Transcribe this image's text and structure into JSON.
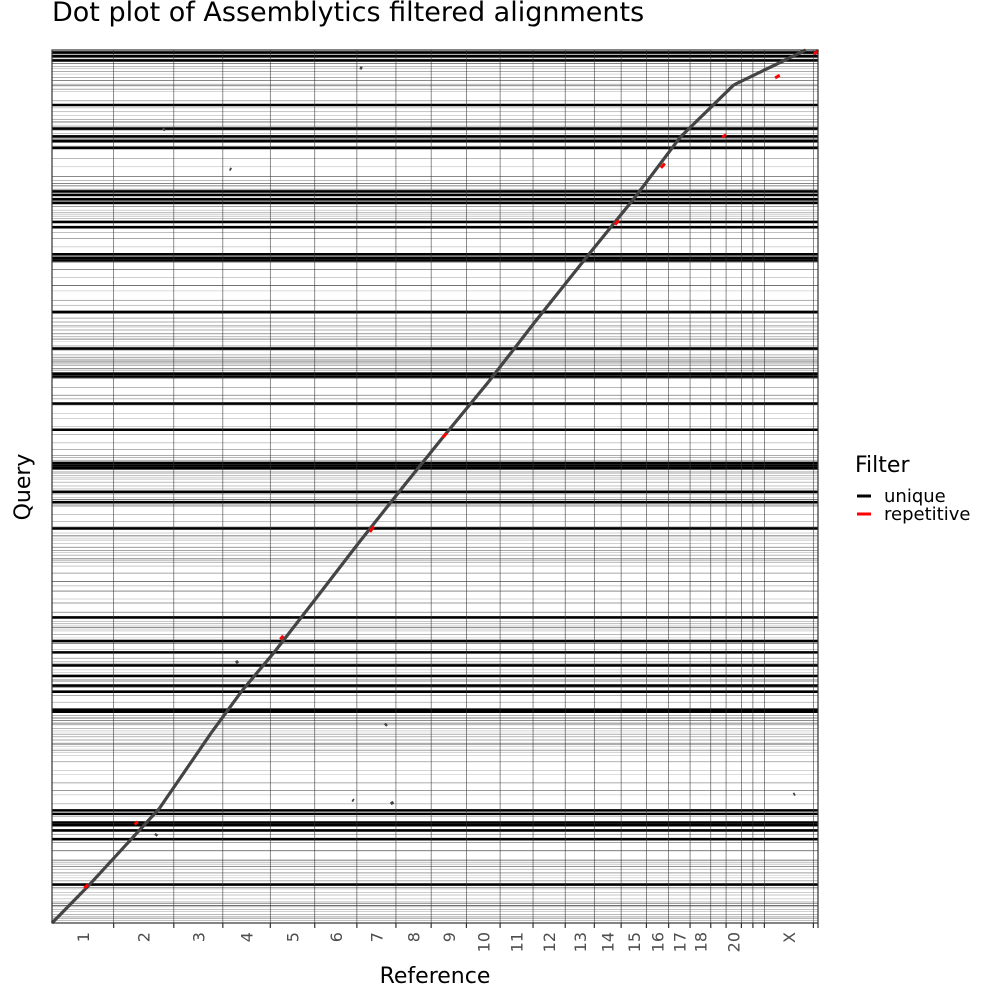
{
  "chart_data": {
    "type": "scatter",
    "title": "Dot plot of Assemblytics filtered alignments",
    "xlabel": "Reference",
    "ylabel": "Query",
    "xlim": [
      0,
      1
    ],
    "ylim": [
      0,
      1
    ],
    "grid": true,
    "legend": {
      "title": "Filter",
      "placement": "right",
      "entries": [
        {
          "label": "unique",
          "color": "#000000"
        },
        {
          "label": "repetitive",
          "color": "#ff0000"
        }
      ]
    },
    "reference_chromosomes": [
      {
        "label": "1",
        "start": 0.0,
        "end": 0.0805
      },
      {
        "label": "2",
        "start": 0.0805,
        "end": 0.159
      },
      {
        "label": "3",
        "start": 0.159,
        "end": 0.223
      },
      {
        "label": "4",
        "start": 0.223,
        "end": 0.285
      },
      {
        "label": "5",
        "start": 0.285,
        "end": 0.343
      },
      {
        "label": "6",
        "start": 0.343,
        "end": 0.398
      },
      {
        "label": "7",
        "start": 0.398,
        "end": 0.449
      },
      {
        "label": "8",
        "start": 0.449,
        "end": 0.495
      },
      {
        "label": "9",
        "start": 0.495,
        "end": 0.541
      },
      {
        "label": "10",
        "start": 0.541,
        "end": 0.585
      },
      {
        "label": "11",
        "start": 0.585,
        "end": 0.628
      },
      {
        "label": "12",
        "start": 0.628,
        "end": 0.67
      },
      {
        "label": "13",
        "start": 0.67,
        "end": 0.708
      },
      {
        "label": "14",
        "start": 0.708,
        "end": 0.743
      },
      {
        "label": "15",
        "start": 0.743,
        "end": 0.776
      },
      {
        "label": "16",
        "start": 0.776,
        "end": 0.805
      },
      {
        "label": "17",
        "start": 0.805,
        "end": 0.833
      },
      {
        "label": "18",
        "start": 0.833,
        "end": 0.86
      },
      {
        "label": "",
        "start": 0.86,
        "end": 0.88
      },
      {
        "label": "20",
        "start": 0.88,
        "end": 0.9
      },
      {
        "label": "",
        "start": 0.9,
        "end": 0.915
      },
      {
        "label": "",
        "start": 0.915,
        "end": 0.93
      },
      {
        "label": "X",
        "start": 0.93,
        "end": 0.994
      },
      {
        "label": "",
        "start": 0.994,
        "end": 1.0
      }
    ],
    "query_thick_boundaries": [
      0.044,
      0.096,
      0.106,
      0.112,
      0.115,
      0.125,
      0.129,
      0.242,
      0.244,
      0.265,
      0.272,
      0.283,
      0.295,
      0.31,
      0.323,
      0.35,
      0.452,
      0.482,
      0.494,
      0.521,
      0.524,
      0.527,
      0.565,
      0.595,
      0.626,
      0.629,
      0.658,
      0.7,
      0.759,
      0.762,
      0.766,
      0.797,
      0.803,
      0.825,
      0.829,
      0.834,
      0.838,
      0.888,
      0.896,
      0.901,
      0.91,
      0.937,
      0.988,
      0.993,
      0.997
    ],
    "query_dense_bands": [
      [
        0.0,
        0.07
      ],
      [
        0.185,
        0.245
      ],
      [
        0.274,
        0.3
      ],
      [
        0.32,
        0.345
      ],
      [
        0.405,
        0.445
      ],
      [
        0.47,
        0.535
      ],
      [
        0.615,
        0.65
      ],
      [
        0.655,
        0.69
      ],
      [
        0.805,
        0.85
      ],
      [
        0.885,
        0.925
      ],
      [
        0.95,
        1.0
      ]
    ],
    "series": [
      {
        "name": "unique",
        "color": "#444444",
        "segments": [
          {
            "x": [
              0.0,
              0.048
            ],
            "y": [
              0.0,
              0.043
            ]
          },
          {
            "x": [
              0.048,
              0.14
            ],
            "y": [
              0.043,
              0.131
            ]
          },
          {
            "x": [
              0.14,
              0.208
            ],
            "y": [
              0.131,
              0.218
            ]
          },
          {
            "x": [
              0.208,
              0.248
            ],
            "y": [
              0.218,
              0.266
            ]
          },
          {
            "x": [
              0.248,
              0.29
            ],
            "y": [
              0.266,
              0.31
            ]
          },
          {
            "x": [
              0.29,
              0.343
            ],
            "y": [
              0.31,
              0.37
            ]
          },
          {
            "x": [
              0.343,
              0.4
            ],
            "y": [
              0.37,
              0.435
            ]
          },
          {
            "x": [
              0.4,
              0.455
            ],
            "y": [
              0.435,
              0.496
            ]
          },
          {
            "x": [
              0.455,
              0.51
            ],
            "y": [
              0.496,
              0.556
            ]
          },
          {
            "x": [
              0.51,
              0.57
            ],
            "y": [
              0.556,
              0.62
            ]
          },
          {
            "x": [
              0.57,
              0.63
            ],
            "y": [
              0.62,
              0.688
            ]
          },
          {
            "x": [
              0.63,
              0.7
            ],
            "y": [
              0.688,
              0.765
            ]
          },
          {
            "x": [
              0.7,
              0.76
            ],
            "y": [
              0.765,
              0.83
            ]
          },
          {
            "x": [
              0.76,
              0.82
            ],
            "y": [
              0.83,
              0.9
            ]
          },
          {
            "x": [
              0.82,
              0.89
            ],
            "y": [
              0.9,
              0.96
            ]
          },
          {
            "x": [
              0.89,
              0.984
            ],
            "y": [
              0.96,
              1.0
            ]
          },
          {
            "x": [
              0.135,
              0.137
            ],
            "y": [
              0.1,
              0.102
            ]
          },
          {
            "x": [
              0.24,
              0.243
            ],
            "y": [
              0.298,
              0.3
            ]
          },
          {
            "x": [
              0.435,
              0.437
            ],
            "y": [
              0.226,
              0.228
            ]
          },
          {
            "x": [
              0.392,
              0.394
            ],
            "y": [
              0.141,
              0.14
            ]
          },
          {
            "x": [
              0.443,
              0.445
            ],
            "y": [
              0.139,
              0.136
            ]
          },
          {
            "x": [
              0.145,
              0.147
            ],
            "y": [
              0.908,
              0.91
            ]
          },
          {
            "x": [
              0.968,
              0.97
            ],
            "y": [
              0.147,
              0.148
            ]
          },
          {
            "x": [
              0.402,
              0.405
            ],
            "y": [
              0.98,
              0.979
            ]
          },
          {
            "x": [
              0.232,
              0.234
            ],
            "y": [
              0.864,
              0.863
            ]
          }
        ]
      },
      {
        "name": "repetitive",
        "color": "#ff0000",
        "segments": [
          {
            "x": [
              0.042,
              0.047
            ],
            "y": [
              0.04,
              0.044
            ]
          },
          {
            "x": [
              0.108,
              0.112
            ],
            "y": [
              0.113,
              0.116
            ]
          },
          {
            "x": [
              0.298,
              0.302
            ],
            "y": [
              0.325,
              0.329
            ]
          },
          {
            "x": [
              0.415,
              0.42
            ],
            "y": [
              0.448,
              0.454
            ]
          },
          {
            "x": [
              0.51,
              0.515
            ],
            "y": [
              0.556,
              0.561
            ]
          },
          {
            "x": [
              0.735,
              0.74
            ],
            "y": [
              0.8,
              0.805
            ]
          },
          {
            "x": [
              0.795,
              0.8
            ],
            "y": [
              0.865,
              0.87
            ]
          },
          {
            "x": [
              0.875,
              0.88
            ],
            "y": [
              0.9,
              0.903
            ]
          },
          {
            "x": [
              0.944,
              0.95
            ],
            "y": [
              0.968,
              0.971
            ]
          },
          {
            "x": [
              0.995,
              1.0
            ],
            "y": [
              0.995,
              1.0
            ]
          }
        ]
      }
    ]
  }
}
